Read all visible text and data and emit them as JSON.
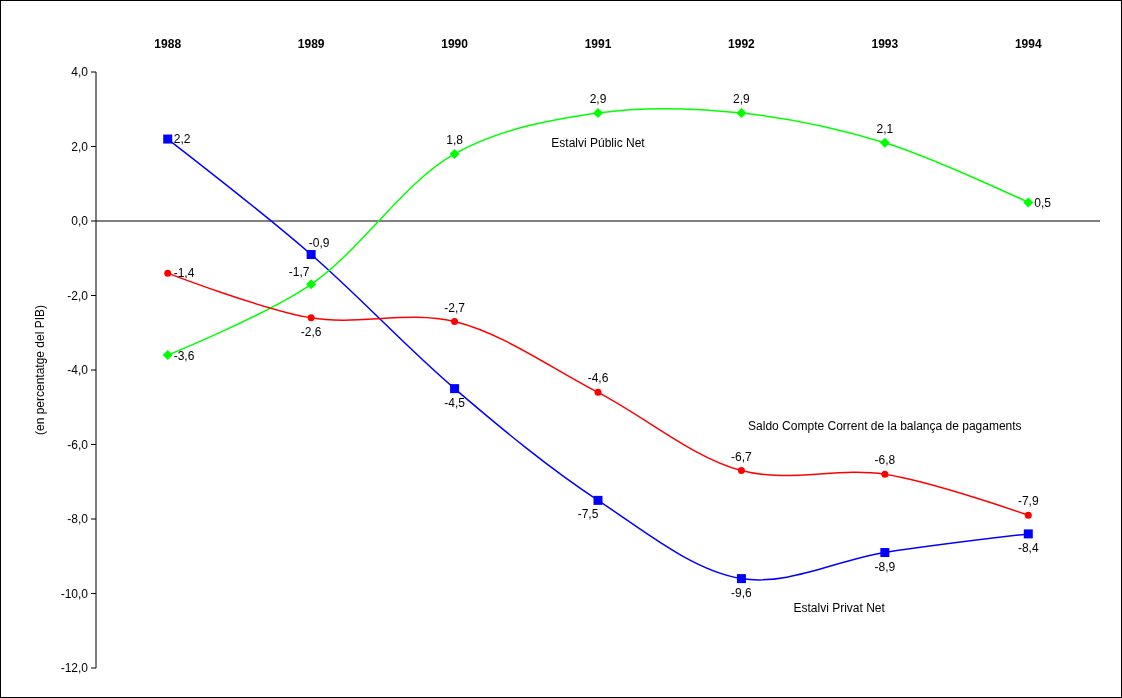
{
  "chart_data": {
    "type": "line",
    "ylabel": "(en percentatge del PIB)",
    "categories": [
      "1988",
      "1989",
      "1990",
      "1991",
      "1992",
      "1993",
      "1994"
    ],
    "series": [
      {
        "name": "Estalvi Privat Net",
        "color": "#0000ff",
        "marker": "square",
        "values": [
          2.2,
          -0.9,
          -4.5,
          -7.5,
          -9.6,
          -8.9,
          -8.4
        ],
        "value_labels": [
          "2,2",
          "-0,9",
          "-4,5",
          "-7,5",
          "-9,6",
          "-8,9",
          "-8,4"
        ]
      },
      {
        "name": "Estalvi Públic Net",
        "color": "#00ff00",
        "marker": "diamond",
        "values": [
          -3.6,
          -1.7,
          1.8,
          2.9,
          2.9,
          2.1,
          0.5
        ],
        "value_labels": [
          "-3,6",
          "-1,7",
          "1,8",
          "2,9",
          "2,9",
          "2,1",
          "0,5"
        ]
      },
      {
        "name": "Saldo Compte Corrent de la balança de pagaments",
        "color": "#ff0000",
        "marker": "circle",
        "values": [
          -1.4,
          -2.6,
          -2.7,
          -4.6,
          -6.7,
          -6.8,
          -7.9
        ],
        "value_labels": [
          "-1,4",
          "-2,6",
          "-2,7",
          "-4,6",
          "-6,7",
          "-6,8",
          "-7,9"
        ]
      }
    ],
    "ylim": [
      -12,
      4
    ],
    "yticks": [
      {
        "value": -12,
        "label": "-12,0"
      },
      {
        "value": -10,
        "label": "-10,0"
      },
      {
        "value": -8,
        "label": "-8,0"
      },
      {
        "value": -6,
        "label": "-6,0"
      },
      {
        "value": -4,
        "label": "-4,0"
      },
      {
        "value": -2,
        "label": "-2,0"
      },
      {
        "value": 0,
        "label": "0,0"
      },
      {
        "value": 2,
        "label": "2,0"
      },
      {
        "value": 4,
        "label": "4,0"
      }
    ],
    "legend": false,
    "line_style": "solid"
  }
}
